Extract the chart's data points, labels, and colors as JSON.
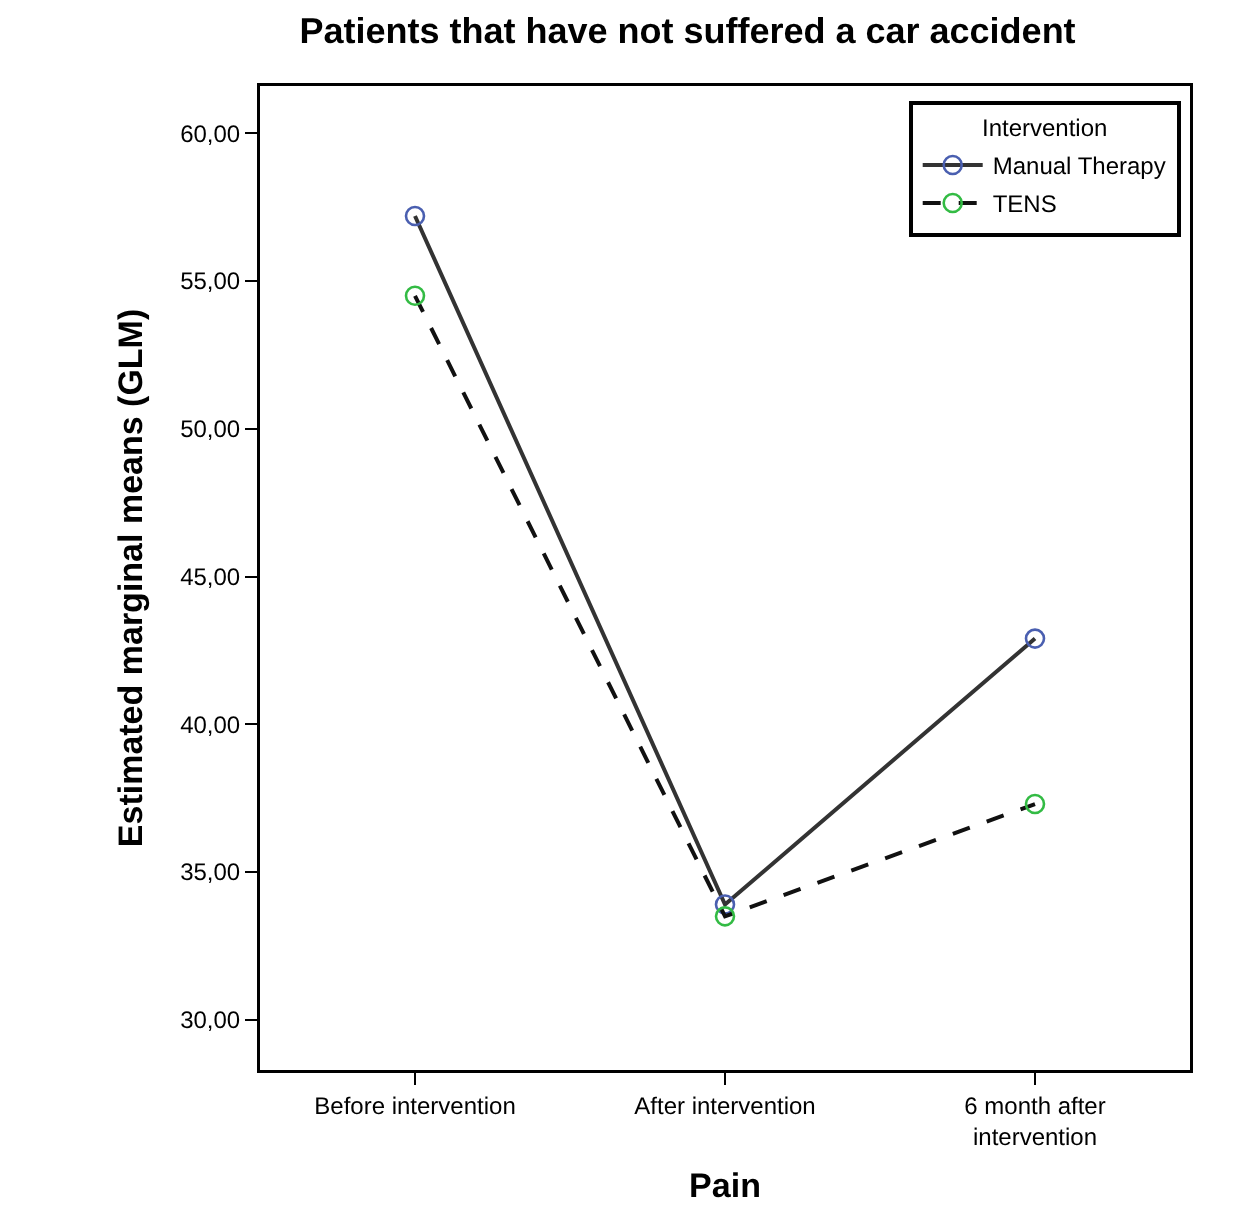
{
  "chart_data": {
    "type": "line",
    "title": "Patients that have not suffered a car accident",
    "xlabel": "Pain",
    "ylabel": "Estimated marginal means (GLM)",
    "legend_title": "Intervention",
    "categories": [
      "Before intervention",
      "After intervention",
      "6 month after intervention"
    ],
    "series": [
      {
        "name": "Manual Therapy",
        "color": "#333333",
        "colors": [
          "#4a5fb0",
          "#4a5fb0",
          "#4a5fb0"
        ],
        "line_style": "solid",
        "values": [
          57.2,
          33.9,
          42.9
        ]
      },
      {
        "name": "TENS",
        "color": "#111111",
        "colors": [
          "#33bb44",
          "#33bb44",
          "#33bb44"
        ],
        "line_style": "dashed",
        "values": [
          54.5,
          33.5,
          37.3
        ]
      }
    ],
    "ylim": [
      28.3,
      61.6
    ],
    "yticks": [
      {
        "value": 30,
        "label": "30,00"
      },
      {
        "value": 35,
        "label": "35,00"
      },
      {
        "value": 40,
        "label": "40,00"
      },
      {
        "value": 45,
        "label": "45,00"
      },
      {
        "value": 50,
        "label": "50,00"
      },
      {
        "value": 55,
        "label": "55,00"
      },
      {
        "value": 60,
        "label": "60,00"
      }
    ],
    "grid": false,
    "legend": "top right",
    "marker": "circle"
  }
}
